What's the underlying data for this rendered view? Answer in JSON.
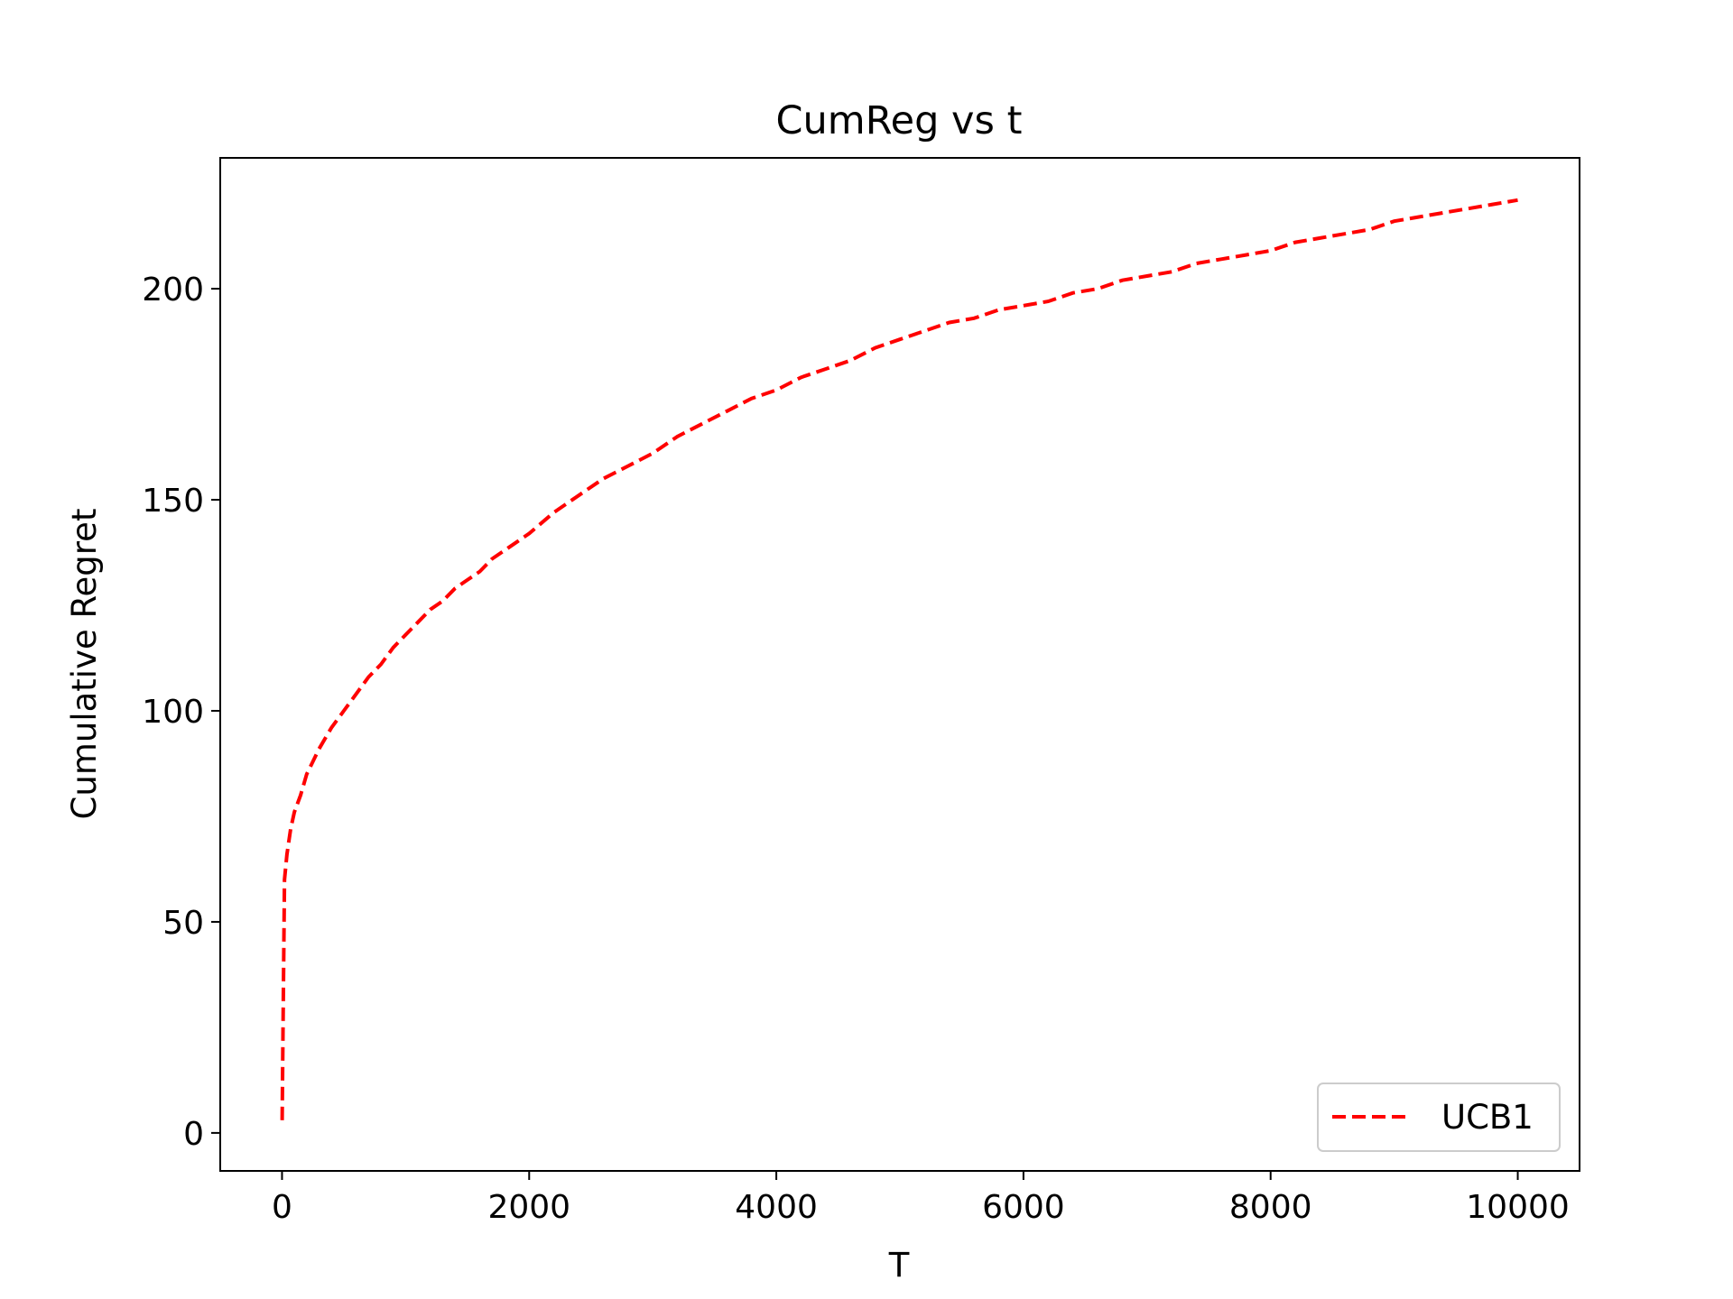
{
  "chart_data": {
    "type": "line",
    "title": "CumReg vs t",
    "xlabel": "T",
    "ylabel": "Cumulative Regret",
    "xlim": [
      -500,
      10500
    ],
    "ylim": [
      -9,
      231
    ],
    "xticks": [
      0,
      2000,
      4000,
      6000,
      8000,
      10000
    ],
    "yticks": [
      0,
      50,
      100,
      150,
      200
    ],
    "grid": false,
    "legend": {
      "placement": "lower-right"
    },
    "series": [
      {
        "name": "UCB1",
        "color": "#ff0000",
        "style": "dashed",
        "x": [
          1,
          10,
          20,
          40,
          70,
          100,
          150,
          200,
          250,
          300,
          400,
          500,
          600,
          700,
          800,
          900,
          1000,
          1100,
          1200,
          1300,
          1400,
          1500,
          1600,
          1700,
          1800,
          1900,
          2000,
          2200,
          2400,
          2600,
          2800,
          3000,
          3200,
          3400,
          3600,
          3800,
          4000,
          4200,
          4400,
          4600,
          4800,
          5000,
          5200,
          5400,
          5600,
          5800,
          6000,
          6200,
          6400,
          6600,
          6800,
          7000,
          7200,
          7400,
          7600,
          7800,
          8000,
          8200,
          8400,
          8600,
          8800,
          9000,
          9200,
          9400,
          9600,
          9800,
          10000
        ],
        "values": [
          3,
          30,
          60,
          66,
          72,
          76,
          80,
          85,
          88,
          91,
          96,
          100,
          104,
          108,
          111,
          115,
          118,
          121,
          124,
          126,
          129,
          131,
          133,
          136,
          138,
          140,
          142,
          147,
          151,
          155,
          158,
          161,
          165,
          168,
          171,
          174,
          176,
          179,
          181,
          183,
          186,
          188,
          190,
          192,
          193,
          195,
          196,
          197,
          199,
          200,
          202,
          203,
          204,
          206,
          207,
          208,
          209,
          211,
          212,
          213,
          214,
          216,
          217,
          218,
          219,
          220,
          221
        ]
      }
    ]
  }
}
